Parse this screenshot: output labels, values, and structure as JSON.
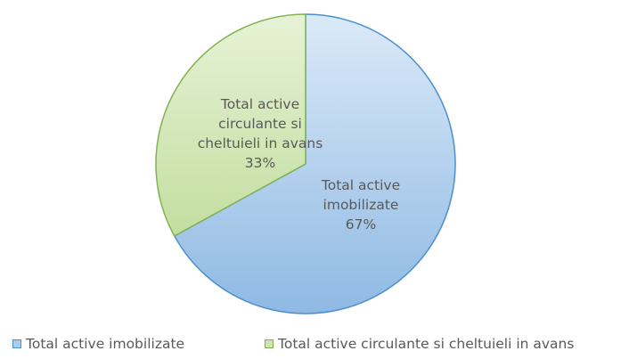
{
  "chart_data": {
    "type": "pie",
    "categories": [
      "Total active imobilizate",
      "Total active circulante si cheltuieli in avans"
    ],
    "values": [
      67,
      33
    ],
    "value_labels": [
      "67%",
      "33%"
    ],
    "colors": [
      "#a9cbec",
      "#cfe5b0"
    ],
    "edge_colors": [
      "#4a8fcf",
      "#80b350"
    ],
    "legend": "bottom"
  }
}
